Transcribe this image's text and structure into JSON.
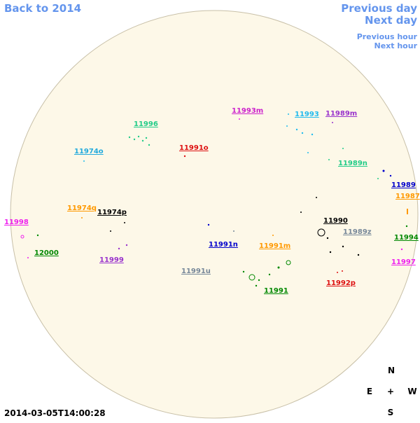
{
  "nav": {
    "back": "Back to 2014",
    "previous_day": "Previous day",
    "next_day": "Next day",
    "previous_hour": "Previous hour",
    "next_hour": "Next hour"
  },
  "regions": [
    {
      "label": "11996",
      "color": "#22cc88"
    },
    {
      "label": "11993m",
      "color": "#cc22cc"
    },
    {
      "label": "11993",
      "color": "#22bbee"
    },
    {
      "label": "11989m",
      "color": "#9933cc"
    },
    {
      "label": "11974o",
      "color": "#22aadd"
    },
    {
      "label": "11991o",
      "color": "#dd1111"
    },
    {
      "label": "11989n",
      "color": "#22cc88"
    },
    {
      "label": "11989",
      "color": "#0000cc"
    },
    {
      "label": "11987",
      "color": "#ff9900"
    },
    {
      "label": "11974q",
      "color": "#ff9900"
    },
    {
      "label": "11974p",
      "color": "#000000"
    },
    {
      "label": "11990",
      "color": "#000000"
    },
    {
      "label": "11989z",
      "color": "#778899"
    },
    {
      "label": "11998",
      "color": "#ee22ee"
    },
    {
      "label": "11994",
      "color": "#008800"
    },
    {
      "label": "12000",
      "color": "#008800"
    },
    {
      "label": "11991n",
      "color": "#0000cc"
    },
    {
      "label": "11991m",
      "color": "#ff9900"
    },
    {
      "label": "11999",
      "color": "#9933cc"
    },
    {
      "label": "11997",
      "color": "#ee22ee"
    },
    {
      "label": "11991u",
      "color": "#778899"
    },
    {
      "label": "11992p",
      "color": "#dd1111"
    },
    {
      "label": "11991",
      "color": "#008800"
    }
  ],
  "timestamp": "2014-03-05T14:00:28",
  "compass": {
    "north": "N",
    "east": "E",
    "center": "+",
    "west": "W",
    "south": "S"
  }
}
